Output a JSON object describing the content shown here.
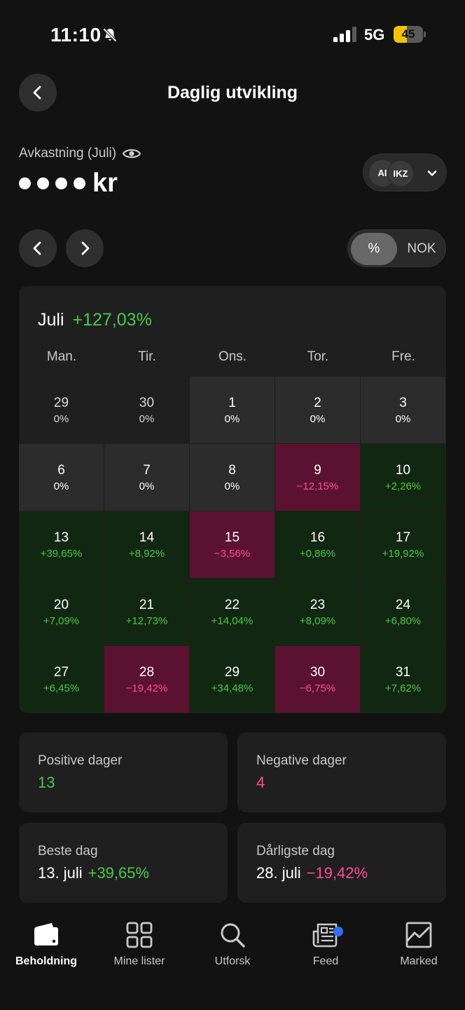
{
  "status_bar": {
    "time": "11:10",
    "network": "5G",
    "battery": "45",
    "battery_level": 0.45
  },
  "header": {
    "title": "Daglig utvikling"
  },
  "summary": {
    "label": "Avkastning (Juli)",
    "value_unit": "kr"
  },
  "accounts": {
    "chips": [
      "AI",
      "IKZ"
    ]
  },
  "unit_toggle": {
    "percent_label": "%",
    "nok_label": "NOK",
    "selected": "percent"
  },
  "calendar": {
    "month": "Juli",
    "total": "+127,03%",
    "weekdays": [
      "Man.",
      "Tir.",
      "Ons.",
      "Tor.",
      "Fre."
    ],
    "days": [
      {
        "day": "29",
        "pct": "0%",
        "state": "outside"
      },
      {
        "day": "30",
        "pct": "0%",
        "state": "outside"
      },
      {
        "day": "1",
        "pct": "0%",
        "state": "zero"
      },
      {
        "day": "2",
        "pct": "0%",
        "state": "zero"
      },
      {
        "day": "3",
        "pct": "0%",
        "state": "zero"
      },
      {
        "day": "6",
        "pct": "0%",
        "state": "zero"
      },
      {
        "day": "7",
        "pct": "0%",
        "state": "zero"
      },
      {
        "day": "8",
        "pct": "0%",
        "state": "zero"
      },
      {
        "day": "9",
        "pct": "−12,15%",
        "state": "neg"
      },
      {
        "day": "10",
        "pct": "+2,26%",
        "state": "pos"
      },
      {
        "day": "13",
        "pct": "+39,65%",
        "state": "pos"
      },
      {
        "day": "14",
        "pct": "+8,92%",
        "state": "pos"
      },
      {
        "day": "15",
        "pct": "−3,56%",
        "state": "neg"
      },
      {
        "day": "16",
        "pct": "+0,86%",
        "state": "pos"
      },
      {
        "day": "17",
        "pct": "+19,92%",
        "state": "pos"
      },
      {
        "day": "20",
        "pct": "+7,09%",
        "state": "pos"
      },
      {
        "day": "21",
        "pct": "+12,73%",
        "state": "pos"
      },
      {
        "day": "22",
        "pct": "+14,04%",
        "state": "pos"
      },
      {
        "day": "23",
        "pct": "+8,09%",
        "state": "pos"
      },
      {
        "day": "24",
        "pct": "+6,80%",
        "state": "pos"
      },
      {
        "day": "27",
        "pct": "+6,45%",
        "state": "pos"
      },
      {
        "day": "28",
        "pct": "−19,42%",
        "state": "neg"
      },
      {
        "day": "29",
        "pct": "+34,48%",
        "state": "pos"
      },
      {
        "day": "30",
        "pct": "−6,75%",
        "state": "neg"
      },
      {
        "day": "31",
        "pct": "+7,62%",
        "state": "pos"
      }
    ]
  },
  "stats": {
    "positive_days": {
      "label": "Positive dager",
      "value": "13"
    },
    "negative_days": {
      "label": "Negative dager",
      "value": "4"
    },
    "best_day": {
      "label": "Beste dag",
      "date": "13. juli",
      "value": "+39,65%"
    },
    "worst_day": {
      "label": "Dårligste dag",
      "date": "28. juli",
      "value": "−19,42%"
    }
  },
  "bottom_nav": {
    "tabs": [
      {
        "label": "Beholdning",
        "icon": "wallet-icon",
        "active": true
      },
      {
        "label": "Mine lister",
        "icon": "grid-icon",
        "active": false
      },
      {
        "label": "Utforsk",
        "icon": "search-icon",
        "active": false
      },
      {
        "label": "Feed",
        "icon": "newspaper-icon",
        "active": false,
        "badge": true
      },
      {
        "label": "Marked",
        "icon": "chart-icon",
        "active": false
      }
    ]
  },
  "colors": {
    "positive": "#4cc94a",
    "negative": "#ff4f8f",
    "positive_bg": "#112711",
    "negative_bg": "#5a1230",
    "accent_badge": "#2f6ff0"
  }
}
